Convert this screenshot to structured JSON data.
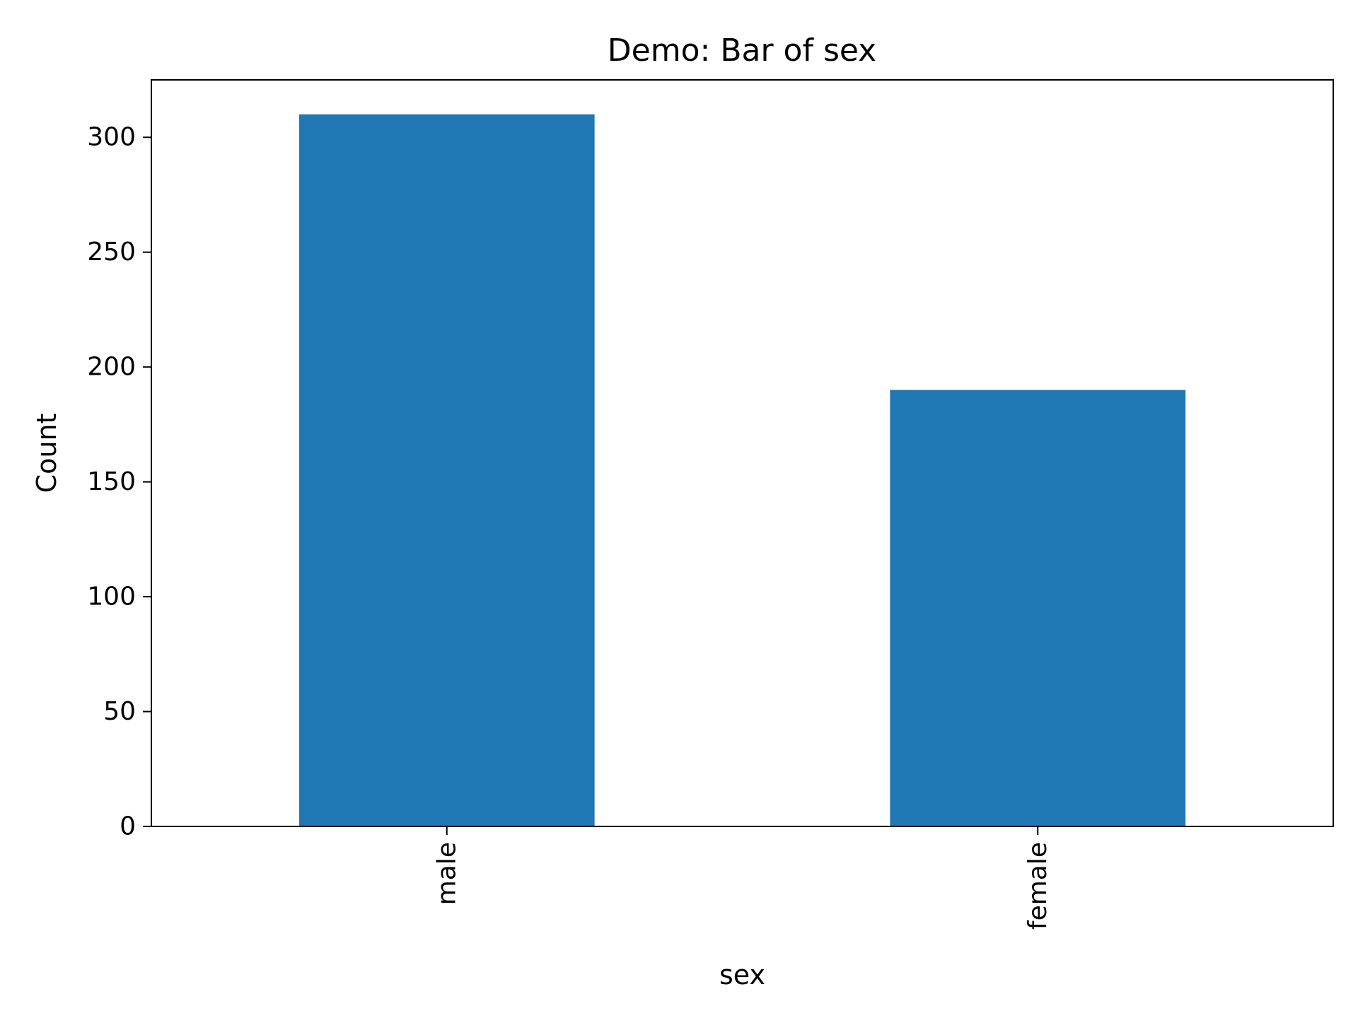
{
  "chart_data": {
    "type": "bar",
    "title": "Demo: Bar of sex",
    "xlabel": "sex",
    "ylabel": "Count",
    "categories": [
      "male",
      "female"
    ],
    "values": [
      310,
      190
    ],
    "ylim": [
      0,
      325
    ],
    "yticks": [
      0,
      50,
      100,
      150,
      200,
      250,
      300
    ],
    "bar_color": "#1f77b4",
    "grid": false,
    "legend": "none",
    "xtick_rotation": "vertical"
  }
}
